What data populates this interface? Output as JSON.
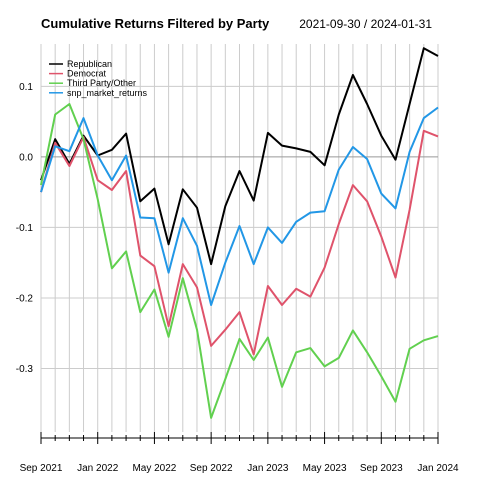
{
  "chart_data": {
    "type": "line",
    "title": "Cumulative Returns Filtered by Party",
    "date_range": "2021-09-30 / 2024-01-31",
    "legend_position": "top-left",
    "grid": true,
    "x": [
      "2021-09-30",
      "2021-10-31",
      "2021-11-30",
      "2021-12-31",
      "2022-01-31",
      "2022-02-28",
      "2022-03-31",
      "2022-04-30",
      "2022-05-31",
      "2022-06-30",
      "2022-07-31",
      "2022-08-31",
      "2022-09-30",
      "2022-10-31",
      "2022-11-30",
      "2022-12-31",
      "2023-01-31",
      "2023-02-28",
      "2023-03-31",
      "2023-04-30",
      "2023-05-31",
      "2023-06-30",
      "2023-07-31",
      "2023-08-31",
      "2023-09-30",
      "2023-10-31",
      "2023-11-30",
      "2023-12-31",
      "2024-01-31"
    ],
    "x_tick_labels": [
      "Sep 2021",
      "Jan 2022",
      "May 2022",
      "Sep 2022",
      "Jan 2023",
      "May 2023",
      "Sep 2023",
      "Jan 2024"
    ],
    "x_tick_dates": [
      "2021-09-30",
      "2022-01-31",
      "2022-05-31",
      "2022-09-30",
      "2023-01-31",
      "2023-05-31",
      "2023-09-30",
      "2024-01-31"
    ],
    "y_ticks": [
      0.1,
      0.0,
      -0.1,
      -0.2,
      -0.3
    ],
    "y_tick_labels": [
      "0.1",
      "0.0",
      "-0.1",
      "-0.2",
      "-0.3"
    ],
    "ylim": [
      -0.39,
      0.16
    ],
    "series": [
      {
        "name": "Republican",
        "color": "#000000",
        "values": [
          -0.033,
          0.025,
          -0.01,
          0.03,
          0.002,
          0.01,
          0.033,
          -0.063,
          -0.045,
          -0.124,
          -0.046,
          -0.072,
          -0.152,
          -0.07,
          -0.02,
          -0.062,
          0.034,
          0.016,
          0.012,
          0.007,
          -0.012,
          0.06,
          0.116,
          0.075,
          0.03,
          -0.004,
          0.075,
          0.154,
          0.143
        ]
      },
      {
        "name": "Democrat",
        "color": "#DF536B",
        "values": [
          -0.05,
          0.02,
          -0.013,
          0.028,
          -0.033,
          -0.047,
          -0.02,
          -0.14,
          -0.155,
          -0.24,
          -0.152,
          -0.185,
          -0.268,
          -0.245,
          -0.22,
          -0.28,
          -0.183,
          -0.21,
          -0.187,
          -0.198,
          -0.157,
          -0.095,
          -0.04,
          -0.063,
          -0.113,
          -0.171,
          -0.075,
          0.037,
          0.029
        ]
      },
      {
        "name": "Third Party/Other",
        "color": "#61D04F",
        "values": [
          -0.04,
          0.06,
          0.075,
          0.025,
          -0.06,
          -0.158,
          -0.134,
          -0.22,
          -0.188,
          -0.255,
          -0.172,
          -0.245,
          -0.37,
          -0.315,
          -0.258,
          -0.288,
          -0.256,
          -0.326,
          -0.277,
          -0.271,
          -0.297,
          -0.285,
          -0.246,
          -0.277,
          -0.311,
          -0.347,
          -0.272,
          -0.26,
          -0.254
        ]
      },
      {
        "name": "snp_market_returns",
        "color": "#2297E6",
        "values": [
          -0.05,
          0.015,
          0.008,
          0.055,
          0.002,
          -0.033,
          0.002,
          -0.086,
          -0.087,
          -0.164,
          -0.087,
          -0.126,
          -0.21,
          -0.15,
          -0.098,
          -0.152,
          -0.1,
          -0.122,
          -0.092,
          -0.079,
          -0.077,
          -0.018,
          0.014,
          -0.003,
          -0.052,
          -0.073,
          0.007,
          0.055,
          0.07
        ]
      }
    ]
  }
}
